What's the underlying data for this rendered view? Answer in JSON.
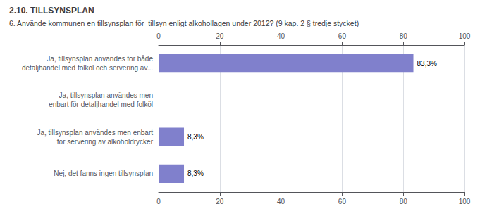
{
  "chart_data": {
    "type": "bar",
    "orientation": "horizontal",
    "title": "2.10. TILLSYNSPLAN",
    "subtitle": "6. Använde kommunen en tillsynsplan för  tillsyn enligt alkohollagen under 2012? (9 kap. 2 § tredje stycket)",
    "categories": [
      "Nej, det fanns ingen tillsynsplan",
      "Ja, tillsynsplan användes men enbart\nför servering av alkoholdrycker",
      "Ja, tillsynsplan användes men\nenbart för detaljhandel med folköl",
      "Ja, tillsynsplan användes för både\ndetaljhandel med folköl och servering av..."
    ],
    "values": [
      8.3,
      8.3,
      0.0,
      83.3
    ],
    "value_labels": [
      "8,3%",
      "8,3%",
      null,
      "83,3%"
    ],
    "data_labels": true,
    "color": "#8080cc",
    "xlim": [
      0,
      100
    ],
    "xticks": [
      0,
      20,
      40,
      60,
      80,
      100
    ],
    "grid": true
  }
}
